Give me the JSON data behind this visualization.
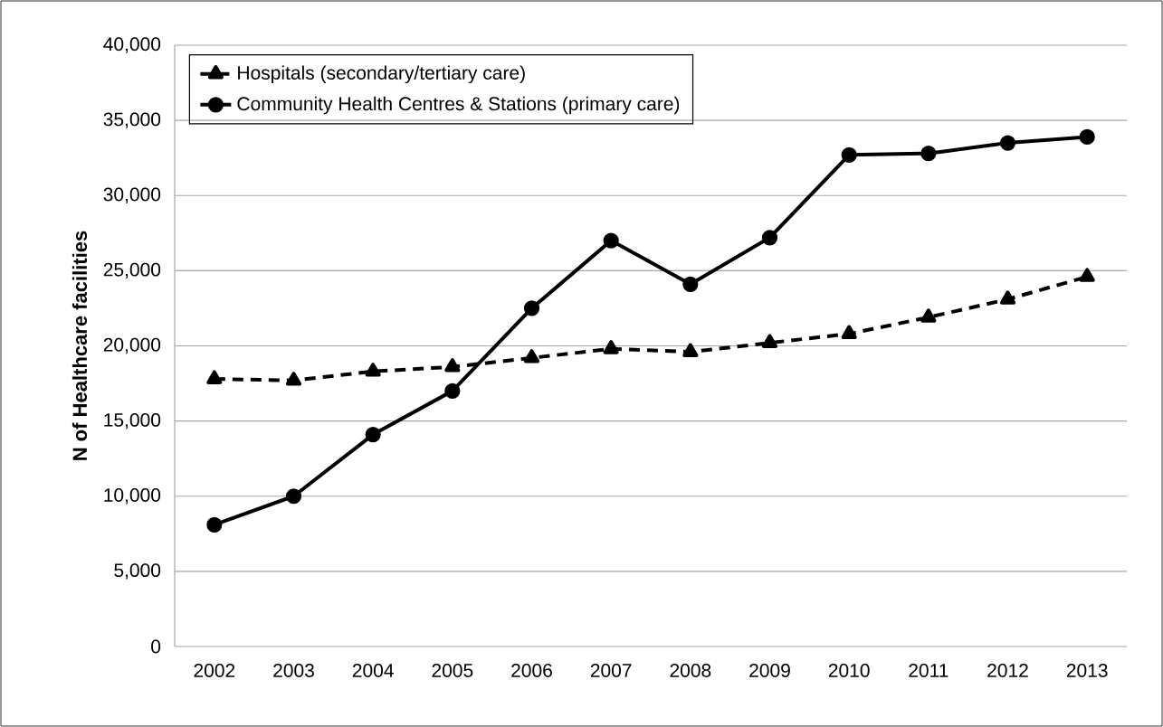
{
  "chart_data": {
    "type": "line",
    "ylabel": "N of Healthcare facilities",
    "categories": [
      "2002",
      "2003",
      "2004",
      "2005",
      "2006",
      "2007",
      "2008",
      "2009",
      "2010",
      "2011",
      "2012",
      "2013"
    ],
    "series": [
      {
        "name": "Hospitals (secondary/tertiary care)",
        "color": "#000000",
        "marker": "triangle",
        "line_style": "dashed",
        "values": [
          17800,
          17700,
          18300,
          18600,
          19200,
          19800,
          19600,
          20200,
          20800,
          21900,
          23100,
          24600
        ]
      },
      {
        "name": "Community Health Centres & Stations (primary care)",
        "color": "#000000",
        "marker": "circle",
        "line_style": "solid",
        "values": [
          8100,
          10000,
          14100,
          17000,
          22500,
          27000,
          24100,
          27200,
          32700,
          32800,
          33500,
          33900
        ]
      }
    ],
    "ylim": [
      0,
      40000
    ],
    "yticks": [
      0,
      {
        "value": 5000,
        "label": "5,000"
      },
      {
        "value": 10000,
        "label": "10,000"
      },
      {
        "value": 15000,
        "label": "15,000"
      },
      {
        "value": 20000,
        "label": "20,000"
      },
      {
        "value": 25000,
        "label": "25,000"
      },
      {
        "value": 30000,
        "label": "30,000"
      },
      {
        "value": 35000,
        "label": "35,000"
      },
      {
        "value": 40000,
        "label": "40,000"
      }
    ],
    "grid": "y",
    "legend": "top left"
  }
}
